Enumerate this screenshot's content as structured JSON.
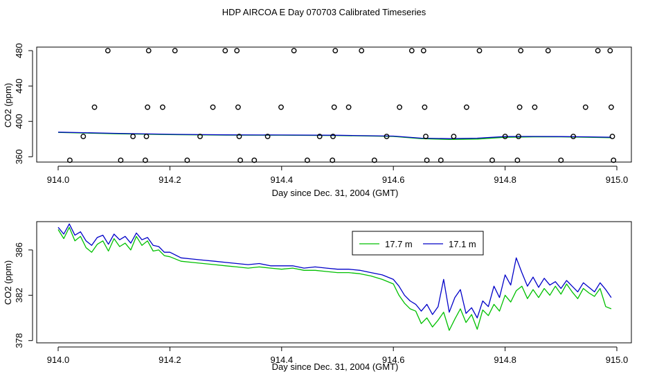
{
  "page": {
    "title": "HDP AIRCOA E  Day 070703  Calibrated Timeseries"
  },
  "colors": {
    "series_17_7": "#00c000",
    "series_17_1": "#0000c8",
    "axis": "#000000",
    "calibration_points": "#000000"
  },
  "chart_data": [
    {
      "type": "scatter",
      "xlabel": "Day since Dec. 31, 2004 (GMT)",
      "ylabel": "CO2 (ppm)",
      "xlim": [
        914.0,
        915.0
      ],
      "ylim": [
        354,
        484
      ],
      "x_ticks": [
        914.0,
        914.2,
        914.4,
        914.6,
        914.8,
        915.0
      ],
      "x_tick_labels": [
        "914.0",
        "914.2",
        "914.4",
        "914.6",
        "914.8",
        "915.0"
      ],
      "y_ticks": [
        360,
        400,
        440,
        480
      ],
      "y_tick_labels": [
        "360",
        "400",
        "440",
        "480"
      ],
      "calibration_points": [
        {
          "x": 914.021,
          "y": 356
        },
        {
          "x": 914.045,
          "y": 383
        },
        {
          "x": 914.065,
          "y": 416
        },
        {
          "x": 914.089,
          "y": 480
        },
        {
          "x": 914.112,
          "y": 356
        },
        {
          "x": 914.134,
          "y": 383
        },
        {
          "x": 914.156,
          "y": 356
        },
        {
          "x": 914.158,
          "y": 383
        },
        {
          "x": 914.16,
          "y": 416
        },
        {
          "x": 914.162,
          "y": 480
        },
        {
          "x": 914.187,
          "y": 416
        },
        {
          "x": 914.209,
          "y": 480
        },
        {
          "x": 914.231,
          "y": 356
        },
        {
          "x": 914.254,
          "y": 383
        },
        {
          "x": 914.277,
          "y": 416
        },
        {
          "x": 914.299,
          "y": 480
        },
        {
          "x": 914.32,
          "y": 480
        },
        {
          "x": 914.322,
          "y": 416
        },
        {
          "x": 914.324,
          "y": 383
        },
        {
          "x": 914.326,
          "y": 356
        },
        {
          "x": 914.351,
          "y": 356
        },
        {
          "x": 914.375,
          "y": 383
        },
        {
          "x": 914.399,
          "y": 416
        },
        {
          "x": 914.422,
          "y": 480
        },
        {
          "x": 914.446,
          "y": 356
        },
        {
          "x": 914.468,
          "y": 383
        },
        {
          "x": 914.491,
          "y": 356
        },
        {
          "x": 914.492,
          "y": 383
        },
        {
          "x": 914.494,
          "y": 416
        },
        {
          "x": 914.496,
          "y": 480
        },
        {
          "x": 914.52,
          "y": 416
        },
        {
          "x": 914.543,
          "y": 480
        },
        {
          "x": 914.566,
          "y": 356
        },
        {
          "x": 914.588,
          "y": 383
        },
        {
          "x": 914.611,
          "y": 416
        },
        {
          "x": 914.633,
          "y": 480
        },
        {
          "x": 914.654,
          "y": 480
        },
        {
          "x": 914.656,
          "y": 416
        },
        {
          "x": 914.658,
          "y": 383
        },
        {
          "x": 914.66,
          "y": 356
        },
        {
          "x": 914.685,
          "y": 356
        },
        {
          "x": 914.708,
          "y": 383
        },
        {
          "x": 914.731,
          "y": 416
        },
        {
          "x": 914.754,
          "y": 480
        },
        {
          "x": 914.777,
          "y": 356
        },
        {
          "x": 914.8,
          "y": 383
        },
        {
          "x": 914.822,
          "y": 356
        },
        {
          "x": 914.824,
          "y": 383
        },
        {
          "x": 914.826,
          "y": 416
        },
        {
          "x": 914.828,
          "y": 480
        },
        {
          "x": 914.853,
          "y": 416
        },
        {
          "x": 914.877,
          "y": 480
        },
        {
          "x": 914.9,
          "y": 356
        },
        {
          "x": 914.922,
          "y": 383
        },
        {
          "x": 914.944,
          "y": 416
        },
        {
          "x": 914.966,
          "y": 480
        },
        {
          "x": 914.988,
          "y": 480
        },
        {
          "x": 914.99,
          "y": 416
        },
        {
          "x": 914.992,
          "y": 383
        },
        {
          "x": 914.994,
          "y": 356
        }
      ],
      "series": [
        {
          "name": "17.7 m",
          "color": "#00c000",
          "x": [
            914.0,
            914.1,
            914.2,
            914.3,
            914.4,
            914.5,
            914.6,
            914.65,
            914.7,
            914.75,
            914.8,
            914.85,
            914.9,
            914.95,
            914.99
          ],
          "values": [
            387.5,
            386.0,
            385.0,
            384.5,
            384.4,
            384.0,
            383.0,
            380.5,
            379.5,
            380.0,
            382.0,
            382.5,
            382.5,
            382.0,
            381.5
          ]
        },
        {
          "name": "17.1 m",
          "color": "#0000c8",
          "x": [
            914.0,
            914.1,
            914.2,
            914.3,
            914.4,
            914.5,
            914.6,
            914.65,
            914.7,
            914.75,
            914.8,
            914.85,
            914.9,
            914.95,
            914.99
          ],
          "values": [
            387.8,
            386.5,
            385.4,
            384.8,
            384.6,
            384.3,
            383.4,
            381.0,
            380.5,
            381.0,
            382.8,
            383.0,
            382.8,
            382.5,
            382.0
          ]
        }
      ]
    },
    {
      "type": "line",
      "xlabel": "Day since Dec. 31, 2004 (GMT)",
      "ylabel": "CO2 (ppm)",
      "xlim": [
        914.0,
        915.0
      ],
      "ylim": [
        377.8,
        388.5
      ],
      "x_ticks": [
        914.0,
        914.2,
        914.4,
        914.6,
        914.8,
        915.0
      ],
      "x_tick_labels": [
        "914.0",
        "914.2",
        "914.4",
        "914.6",
        "914.8",
        "915.0"
      ],
      "y_ticks": [
        378,
        382,
        386
      ],
      "y_tick_labels": [
        "378",
        "382",
        "386"
      ],
      "legend": {
        "placement": "top-right",
        "entries": [
          "17.7 m",
          "17.1 m"
        ]
      },
      "series": [
        {
          "name": "17.7 m",
          "color": "#00c000",
          "x": [
            914.0,
            914.01,
            914.02,
            914.03,
            914.04,
            914.05,
            914.06,
            914.07,
            914.08,
            914.09,
            914.1,
            914.11,
            914.12,
            914.13,
            914.14,
            914.15,
            914.16,
            914.17,
            914.18,
            914.19,
            914.2,
            914.22,
            914.24,
            914.26,
            914.28,
            914.3,
            914.32,
            914.34,
            914.36,
            914.38,
            914.4,
            914.42,
            914.44,
            914.46,
            914.48,
            914.5,
            914.52,
            914.54,
            914.56,
            914.58,
            914.6,
            914.61,
            914.62,
            914.63,
            914.64,
            914.65,
            914.66,
            914.67,
            914.68,
            914.69,
            914.7,
            914.71,
            914.72,
            914.73,
            914.74,
            914.75,
            914.76,
            914.77,
            914.78,
            914.79,
            914.8,
            914.81,
            914.82,
            914.83,
            914.84,
            914.85,
            914.86,
            914.87,
            914.88,
            914.89,
            914.9,
            914.91,
            914.92,
            914.93,
            914.94,
            914.95,
            914.96,
            914.97,
            914.98,
            914.99
          ],
          "values": [
            387.8,
            387.0,
            388.0,
            386.8,
            387.2,
            386.2,
            385.8,
            386.5,
            386.8,
            385.9,
            387.0,
            386.3,
            386.6,
            386.0,
            387.2,
            386.4,
            386.8,
            385.9,
            386.0,
            385.5,
            385.4,
            385.0,
            384.9,
            384.8,
            384.7,
            384.6,
            384.5,
            384.4,
            384.5,
            384.4,
            384.3,
            384.4,
            384.2,
            384.2,
            384.1,
            384.0,
            384.0,
            383.9,
            383.7,
            383.4,
            383.0,
            382.0,
            381.3,
            380.8,
            380.6,
            379.5,
            380.0,
            379.2,
            379.8,
            380.5,
            378.9,
            379.9,
            380.8,
            379.6,
            380.3,
            379.0,
            380.7,
            380.2,
            381.2,
            380.6,
            382.0,
            381.4,
            382.4,
            382.8,
            381.7,
            382.5,
            381.8,
            382.6,
            382.0,
            382.8,
            382.1,
            383.0,
            382.3,
            381.7,
            382.6,
            382.2,
            381.9,
            382.6,
            381.0,
            380.8
          ]
        },
        {
          "name": "17.1 m",
          "color": "#0000c8",
          "x": [
            914.0,
            914.01,
            914.02,
            914.03,
            914.04,
            914.05,
            914.06,
            914.07,
            914.08,
            914.09,
            914.1,
            914.11,
            914.12,
            914.13,
            914.14,
            914.15,
            914.16,
            914.17,
            914.18,
            914.19,
            914.2,
            914.22,
            914.24,
            914.26,
            914.28,
            914.3,
            914.32,
            914.34,
            914.36,
            914.38,
            914.4,
            914.42,
            914.44,
            914.46,
            914.48,
            914.5,
            914.52,
            914.54,
            914.56,
            914.58,
            914.6,
            914.61,
            914.62,
            914.63,
            914.64,
            914.65,
            914.66,
            914.67,
            914.68,
            914.69,
            914.7,
            914.71,
            914.72,
            914.73,
            914.74,
            914.75,
            914.76,
            914.77,
            914.78,
            914.79,
            914.8,
            914.81,
            914.82,
            914.83,
            914.84,
            914.85,
            914.86,
            914.87,
            914.88,
            914.89,
            914.9,
            914.91,
            914.92,
            914.93,
            914.94,
            914.95,
            914.96,
            914.97,
            914.98,
            914.99
          ],
          "values": [
            388.0,
            387.4,
            388.3,
            387.3,
            387.6,
            386.8,
            386.4,
            387.1,
            387.3,
            386.5,
            387.4,
            386.9,
            387.2,
            386.6,
            387.5,
            386.9,
            387.1,
            386.4,
            386.3,
            385.8,
            385.8,
            385.3,
            385.2,
            385.1,
            385.0,
            384.9,
            384.8,
            384.7,
            384.8,
            384.6,
            384.6,
            384.6,
            384.4,
            384.5,
            384.4,
            384.3,
            384.3,
            384.2,
            384.0,
            383.8,
            383.4,
            382.8,
            382.0,
            381.5,
            381.2,
            380.6,
            381.2,
            380.3,
            381.0,
            383.4,
            380.5,
            381.8,
            382.5,
            380.4,
            380.9,
            380.0,
            381.5,
            381.0,
            382.8,
            381.8,
            383.8,
            382.9,
            385.3,
            384.0,
            382.8,
            383.6,
            382.7,
            383.5,
            382.9,
            383.2,
            382.6,
            383.3,
            382.8,
            382.3,
            383.1,
            382.7,
            382.3,
            383.1,
            382.5,
            381.8
          ]
        }
      ]
    }
  ]
}
